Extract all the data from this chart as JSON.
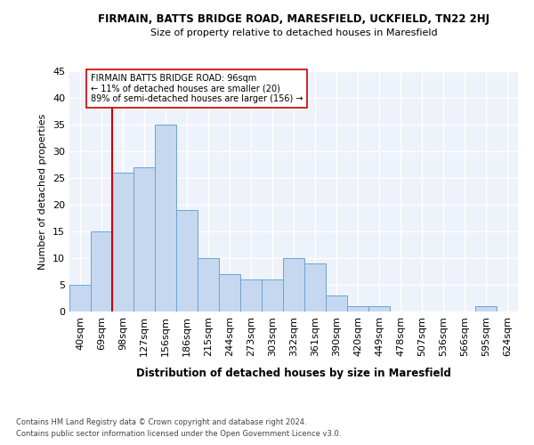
{
  "title_line1": "FIRMAIN, BATTS BRIDGE ROAD, MARESFIELD, UCKFIELD, TN22 2HJ",
  "title_line2": "Size of property relative to detached houses in Maresfield",
  "xlabel": "Distribution of detached houses by size in Maresfield",
  "ylabel": "Number of detached properties",
  "bar_labels": [
    "40sqm",
    "69sqm",
    "98sqm",
    "127sqm",
    "156sqm",
    "186sqm",
    "215sqm",
    "244sqm",
    "273sqm",
    "303sqm",
    "332sqm",
    "361sqm",
    "390sqm",
    "420sqm",
    "449sqm",
    "478sqm",
    "507sqm",
    "536sqm",
    "566sqm",
    "595sqm",
    "624sqm"
  ],
  "bar_values": [
    5,
    15,
    26,
    27,
    35,
    19,
    10,
    7,
    6,
    6,
    10,
    9,
    3,
    1,
    1,
    0,
    0,
    0,
    0,
    1,
    0
  ],
  "bar_color": "#c5d8f0",
  "bar_edge_color": "#6ba3d6",
  "vline_bar_index": 2,
  "vline_color": "#cc0000",
  "annotation_text": "FIRMAIN BATTS BRIDGE ROAD: 96sqm\n← 11% of detached houses are smaller (20)\n89% of semi-detached houses are larger (156) →",
  "ylim": [
    0,
    45
  ],
  "yticks": [
    0,
    5,
    10,
    15,
    20,
    25,
    30,
    35,
    40,
    45
  ],
  "bg_color": "#eef2fa",
  "grid_color": "#ffffff",
  "footnote_line1": "Contains HM Land Registry data © Crown copyright and database right 2024.",
  "footnote_line2": "Contains public sector information licensed under the Open Government Licence v3.0."
}
